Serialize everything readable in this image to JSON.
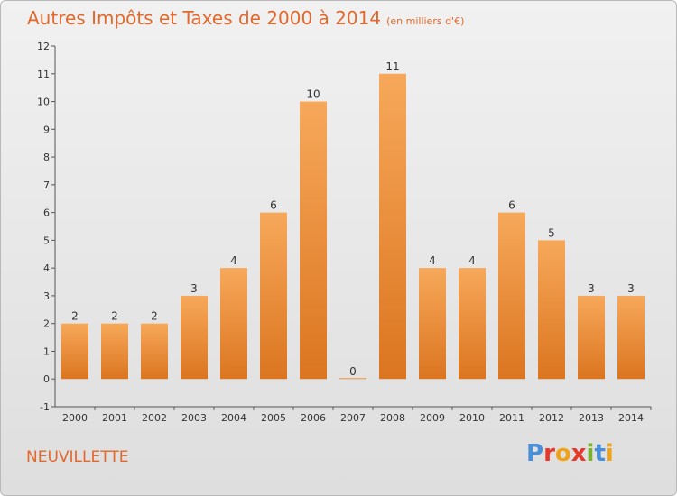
{
  "header": {
    "title": "Autres Impôts et Taxes de 2000 à 2014",
    "unit": "(en milliers d'€)"
  },
  "footer": {
    "commune": "NEUVILLETTE",
    "brand": "Proxiti",
    "brand_letter_colors": [
      "#4a90d9",
      "#e6392e",
      "#f0a21a",
      "#e6392e",
      "#7ab22c",
      "#4a90d9",
      "#f0a21a"
    ]
  },
  "colors": {
    "bar_light": "#f7a85a",
    "bar_dark": "#db7520",
    "axis": "#555555",
    "text": "#333333",
    "accent": "#e3682b"
  },
  "chart_data": {
    "type": "bar",
    "title": "Autres Impôts et Taxes de 2000 à 2014",
    "subtitle": "(en milliers d'€)",
    "xlabel": "",
    "ylabel": "",
    "categories": [
      "2000",
      "2001",
      "2002",
      "2003",
      "2004",
      "2005",
      "2006",
      "2007",
      "2008",
      "2009",
      "2010",
      "2011",
      "2012",
      "2013",
      "2014"
    ],
    "values": [
      2,
      2,
      2,
      3,
      4,
      6,
      10,
      0,
      11,
      4,
      4,
      6,
      5,
      3,
      3
    ],
    "data_labels": [
      "2",
      "2",
      "2",
      "3",
      "4",
      "6",
      "10",
      "0",
      "11",
      "4",
      "4",
      "6",
      "5",
      "3",
      "3"
    ],
    "ylim": [
      -1,
      12
    ],
    "yticks": [
      -1,
      0,
      1,
      2,
      3,
      4,
      5,
      6,
      7,
      8,
      9,
      10,
      11,
      12
    ],
    "grid": false,
    "legend": "none"
  }
}
